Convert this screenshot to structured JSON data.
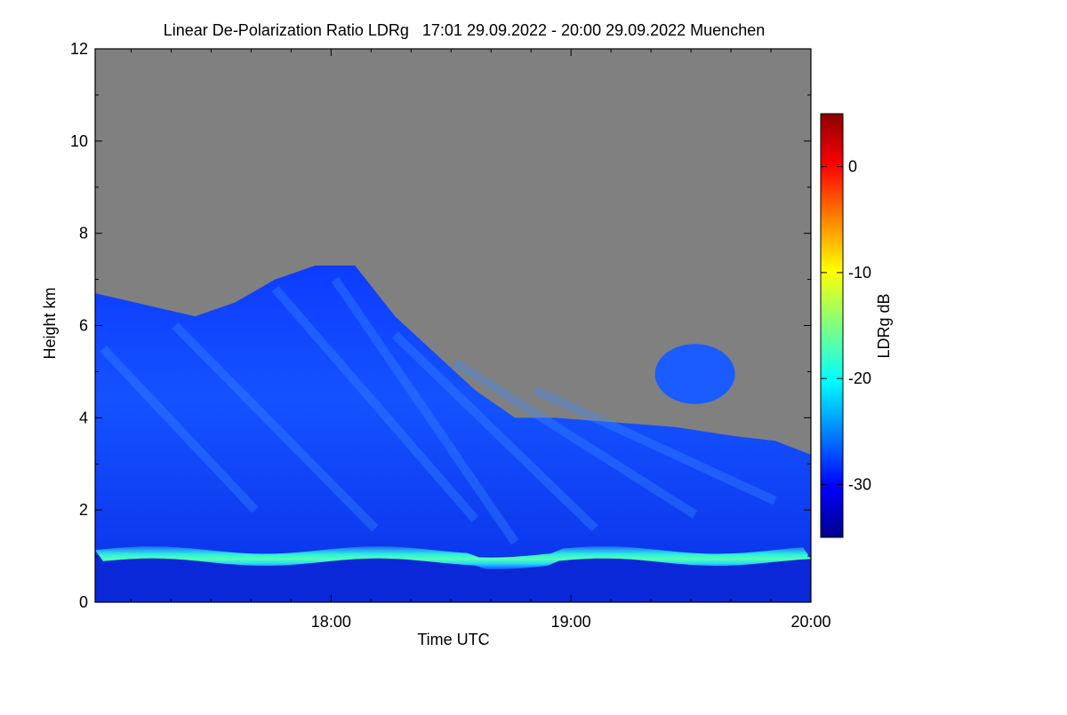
{
  "chart_data": {
    "type": "heatmap",
    "title": "Linear De-Polarization Ratio LDRg   17:01 29.09.2022 - 20:00 29.09.2022 Muenchen",
    "xlabel": "Time UTC",
    "ylabel": "Height km",
    "x_range": [
      "17:01",
      "20:00"
    ],
    "ylim": [
      0,
      12
    ],
    "x_ticks": [
      {
        "label": "18:00",
        "minutes": 59
      },
      {
        "label": "19:00",
        "minutes": 119
      },
      {
        "label": "20:00",
        "minutes": 179
      }
    ],
    "x_minor_tick_minutes": [
      9,
      19,
      29,
      39,
      49,
      69,
      79,
      89,
      99,
      109,
      129,
      139,
      149,
      159,
      169
    ],
    "y_ticks": [
      0,
      2,
      4,
      6,
      8,
      10,
      12
    ],
    "y_minor_ticks": [
      1,
      3,
      5,
      7,
      9,
      11
    ],
    "background_color": "#808080",
    "colorbar": {
      "label": "LDRg dB",
      "range": [
        -35,
        5
      ],
      "ticks": [
        0,
        -10,
        -20,
        -30
      ],
      "colormap": "jet"
    },
    "features": {
      "boundary_layer_height_km": 1.0,
      "cloud_top_km": [
        [
          0,
          6.7
        ],
        [
          15,
          6.4
        ],
        [
          25,
          6.2
        ],
        [
          35,
          6.5
        ],
        [
          45,
          7.0
        ],
        [
          55,
          7.3
        ],
        [
          65,
          7.3
        ],
        [
          75,
          6.2
        ],
        [
          85,
          5.4
        ],
        [
          95,
          4.6
        ],
        [
          105,
          4.0
        ],
        [
          115,
          4.0
        ],
        [
          130,
          3.9
        ],
        [
          145,
          3.8
        ],
        [
          160,
          3.6
        ],
        [
          170,
          3.5
        ],
        [
          179,
          3.2
        ]
      ],
      "upper_patch_km": [
        4.3,
        5.6
      ],
      "upper_patch_minutes": [
        140,
        160
      ]
    }
  }
}
